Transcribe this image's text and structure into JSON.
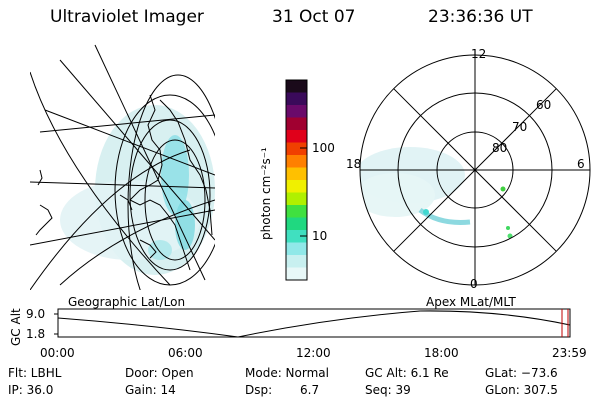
{
  "header": {
    "title": "Ultraviolet Imager",
    "date": "31 Oct 07",
    "time": "23:36:36 UT"
  },
  "colorbar": {
    "unit_label": "photon cm⁻²s⁻¹",
    "ticks": [
      "100",
      "10"
    ],
    "colors": [
      "#1a0a1a",
      "#3a0a5a",
      "#6a0a6a",
      "#a00030",
      "#e0001a",
      "#f04000",
      "#ff8000",
      "#ffc000",
      "#f0f000",
      "#b0f000",
      "#40e040",
      "#20d880",
      "#40e0c0",
      "#90e8e8",
      "#c8f0f0",
      "#e8f8f8"
    ]
  },
  "polar_plot": {
    "mlt_labels": [
      "12",
      "18",
      "6",
      "0"
    ],
    "lat_labels": [
      "60",
      "70",
      "80"
    ]
  },
  "orbit_panel": {
    "left_title": "Geographic Lat/Lon",
    "right_title": "Apex MLat/MLT",
    "y_axis_label": "GC Alt",
    "y_ticks": [
      "9.0",
      "1.8"
    ],
    "x_ticks": [
      "00:00",
      "06:00",
      "12:00",
      "18:00",
      "23:59"
    ]
  },
  "status": {
    "filter": "Flt: LBHL",
    "door": "Door: Open",
    "mode": "Mode: Normal",
    "gc_alt": "GC Alt: 6.1 Re",
    "glat": "GLat: −73.6",
    "ip": "IP: 36.0",
    "gain": "Gain: 14",
    "dsp_label": "Dsp:",
    "dsp_value": "6.7",
    "seq": "Seq: 39",
    "glon": "GLon: 307.5"
  }
}
